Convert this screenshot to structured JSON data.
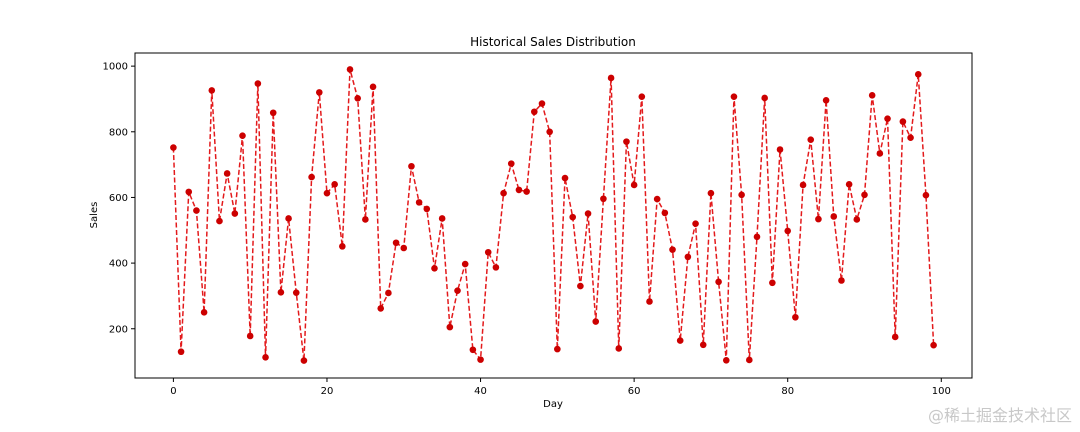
{
  "chart_data": {
    "type": "line",
    "title": "Historical Sales Distribution",
    "xlabel": "Day",
    "ylabel": "Sales",
    "xlim": [
      -5,
      104
    ],
    "ylim": [
      50,
      1040
    ],
    "xticks": [
      0,
      20,
      40,
      60,
      80,
      100
    ],
    "yticks": [
      200,
      400,
      600,
      800,
      1000
    ],
    "grid": false,
    "line_color": "#e31a1c",
    "marker_color": "#cc0000",
    "line_style": "dashed",
    "marker": "circle",
    "series": [
      {
        "x": [
          0,
          1,
          2,
          3,
          4,
          5,
          6,
          7,
          8,
          9,
          10,
          11,
          12,
          13,
          14,
          15,
          16,
          17,
          18,
          19,
          20,
          21,
          22,
          23,
          24,
          25,
          26,
          27,
          28,
          29,
          30,
          31,
          32,
          33,
          34,
          35,
          36,
          37,
          38,
          39,
          40,
          41,
          42,
          43,
          44,
          45,
          46,
          47,
          48,
          49,
          50,
          51,
          52,
          53,
          54,
          55,
          56,
          57,
          58,
          59,
          60,
          61,
          62,
          63,
          64,
          65,
          66,
          67,
          68,
          69,
          70,
          71,
          72,
          73,
          74,
          75,
          76,
          77,
          78,
          79,
          80,
          81,
          82,
          83,
          84,
          85,
          86,
          87,
          88,
          89,
          90,
          91,
          92,
          93,
          94,
          95,
          96,
          97,
          98,
          99
        ],
        "values": [
          752,
          130,
          617,
          560,
          250,
          926,
          528,
          673,
          551,
          788,
          178,
          947,
          113,
          858,
          311,
          536,
          310,
          103,
          662,
          920,
          613,
          640,
          451,
          990,
          902,
          533,
          937,
          262,
          309,
          462,
          446,
          695,
          585,
          565,
          384,
          536,
          205,
          316,
          397,
          136,
          106,
          433,
          387,
          613,
          703,
          623,
          618,
          861,
          886,
          800,
          138,
          659,
          540,
          330,
          551,
          222,
          596,
          964,
          140,
          770,
          638,
          907,
          283,
          595,
          553,
          441,
          164,
          419,
          520,
          151,
          613,
          343,
          104,
          907,
          608,
          105,
          480,
          903,
          340,
          746,
          498,
          235,
          638,
          776,
          534,
          896,
          542,
          347,
          640,
          533,
          608,
          911,
          734,
          840,
          175,
          831,
          782,
          975,
          607,
          150
        ]
      }
    ]
  },
  "watermark": "@稀土掘金技术社区"
}
